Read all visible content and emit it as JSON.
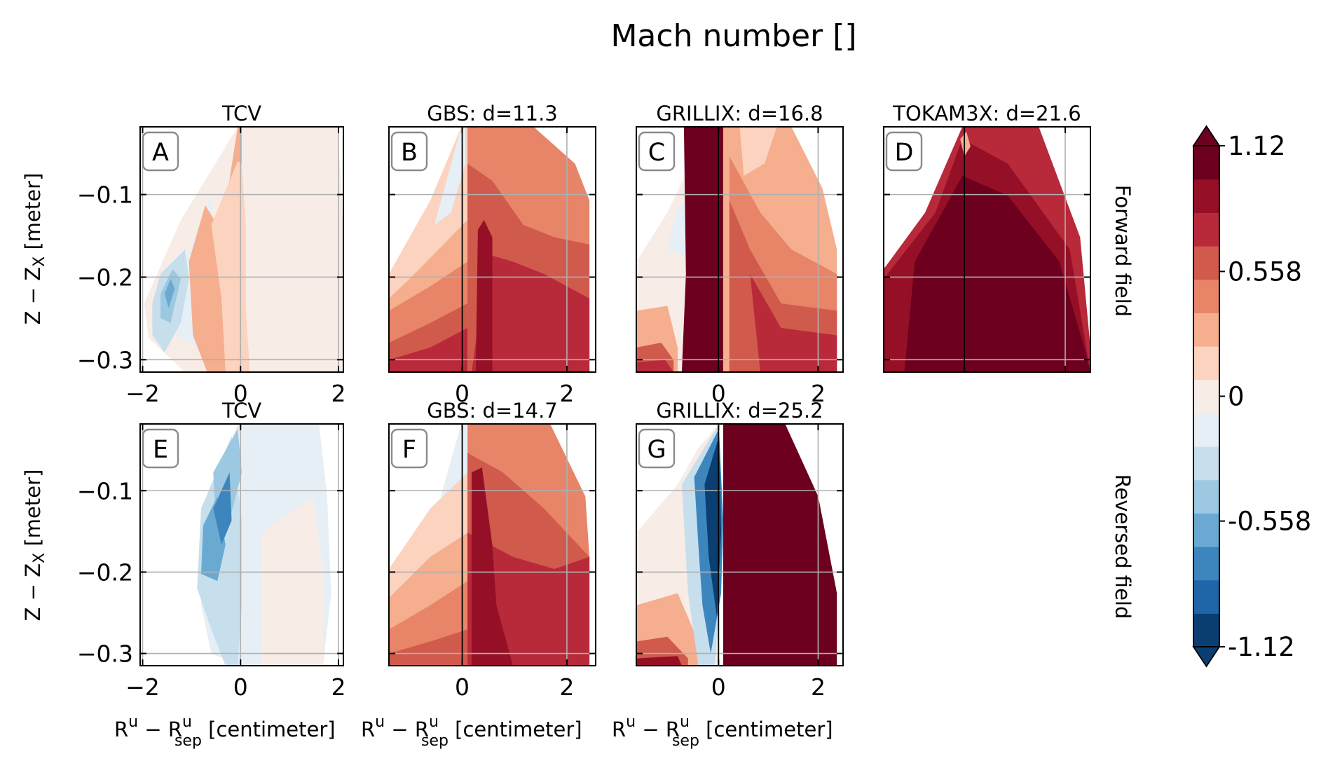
{
  "figure": {
    "suptitle": "Mach number []",
    "row_labels": [
      "Forward field",
      "Reversed field"
    ],
    "y_axis_label": {
      "base": "Z − Z",
      "sub": "X",
      "unit": " [meter]"
    },
    "x_axis_label": {
      "base": "R",
      "sup1": "u",
      "minus": " − R",
      "sup2": "u",
      "sub": "sep",
      "unit": " [centimeter]"
    }
  },
  "colorbar": {
    "tick_labels": [
      "1.12",
      "0.558",
      "0",
      "-0.558",
      "-1.12"
    ],
    "levels": [
      -1.12,
      -0.98,
      -0.84,
      -0.7,
      -0.558,
      -0.42,
      -0.28,
      -0.14,
      0,
      0.14,
      0.28,
      0.42,
      0.558,
      0.7,
      0.84,
      0.98,
      1.12
    ],
    "colors": [
      "#0b3e72",
      "#1f66a8",
      "#3d86bd",
      "#6aaad2",
      "#9cc8e1",
      "#c7dfed",
      "#e6eff5",
      "#f8ece6",
      "#fbd3bf",
      "#f5ae8e",
      "#e88467",
      "#d05a4c",
      "#b8293a",
      "#951026",
      "#6d001f"
    ],
    "extend": "both"
  },
  "chart_data": [
    {
      "type": "heatmap",
      "panel": "A",
      "title": "TCV",
      "row": "Forward field",
      "x_ticks": [
        "−2",
        "0",
        "2"
      ],
      "y_ticks": [
        "−0.1",
        "−0.2",
        "−0.3"
      ],
      "xlim": [
        -2.05,
        2.1
      ],
      "ylim": [
        -0.315,
        -0.018
      ],
      "x_unit": "centimeter",
      "y_unit": "meter"
    },
    {
      "type": "heatmap",
      "panel": "B",
      "title": "GBS: d=11.3",
      "row": "Forward field",
      "x_ticks": [
        "0",
        "2"
      ],
      "xlim": [
        -1.4,
        2.55
      ],
      "ylim": [
        -0.315,
        -0.018
      ]
    },
    {
      "type": "heatmap",
      "panel": "C",
      "title": "GRILLIX: d=16.8",
      "row": "Forward field",
      "x_ticks": [
        "0",
        "2"
      ],
      "xlim": [
        -1.65,
        2.5
      ],
      "ylim": [
        -0.315,
        -0.018
      ]
    },
    {
      "type": "heatmap",
      "panel": "D",
      "title": "TOKAM3X: d=21.6",
      "row": "Forward field",
      "xlim": [
        -1.6,
        2.5
      ],
      "ylim": [
        -0.315,
        -0.018
      ]
    },
    {
      "type": "heatmap",
      "panel": "E",
      "title": "TCV",
      "row": "Reversed field",
      "x_ticks": [
        "−2",
        "0",
        "2"
      ],
      "y_ticks": [
        "−0.1",
        "−0.2",
        "−0.3"
      ],
      "xlim": [
        -2.05,
        2.1
      ],
      "ylim": [
        -0.315,
        -0.018
      ]
    },
    {
      "type": "heatmap",
      "panel": "F",
      "title": "GBS: d=14.7",
      "row": "Reversed field",
      "x_ticks": [
        "0",
        "2"
      ],
      "xlim": [
        -1.4,
        2.55
      ],
      "ylim": [
        -0.315,
        -0.018
      ]
    },
    {
      "type": "heatmap",
      "panel": "G",
      "title": "GRILLIX: d=25.2",
      "row": "Reversed field",
      "x_ticks": [
        "0",
        "2"
      ],
      "xlim": [
        -1.65,
        2.5
      ],
      "ylim": [
        -0.315,
        -0.018
      ]
    }
  ]
}
